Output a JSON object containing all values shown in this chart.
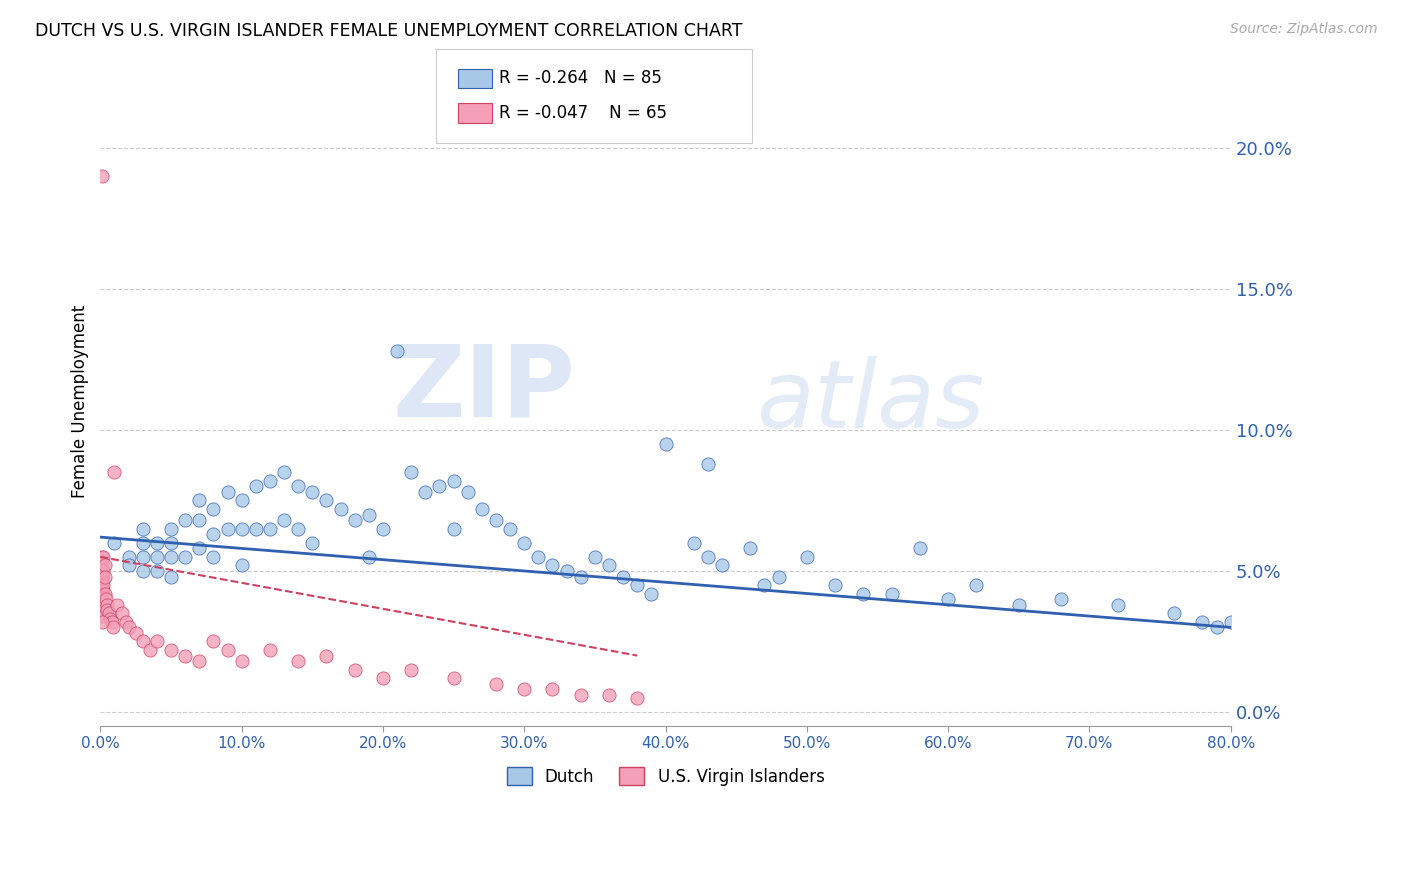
{
  "title": "DUTCH VS U.S. VIRGIN ISLANDER FEMALE UNEMPLOYMENT CORRELATION CHART",
  "source": "Source: ZipAtlas.com",
  "ylabel": "Female Unemployment",
  "xlim": [
    0.0,
    0.8
  ],
  "ylim": [
    -0.005,
    0.225
  ],
  "yticks": [
    0.0,
    0.05,
    0.1,
    0.15,
    0.2
  ],
  "ytick_labels": [
    "0.0%",
    "5.0%",
    "10.0%",
    "15.0%",
    "20.0%"
  ],
  "xticks": [
    0.0,
    0.1,
    0.2,
    0.3,
    0.4,
    0.5,
    0.6,
    0.7,
    0.8
  ],
  "xtick_labels": [
    "0.0%",
    "10.0%",
    "20.0%",
    "30.0%",
    "40.0%",
    "50.0%",
    "60.0%",
    "70.0%",
    "80.0%"
  ],
  "dutch_color": "#a8c8e8",
  "vi_color": "#f4a0b8",
  "dutch_line_color": "#3060b0",
  "vi_line_color": "#d04060",
  "R_dutch": -0.264,
  "N_dutch": 85,
  "R_vi": -0.047,
  "N_vi": 65,
  "legend_label_dutch": "Dutch",
  "legend_label_vi": "U.S. Virgin Islanders",
  "watermark_zip": "ZIP",
  "watermark_atlas": "atlas",
  "dutch_line_y_start": 0.062,
  "dutch_line_y_end": 0.03,
  "vi_line_x_start": 0.0,
  "vi_line_y_start": 0.055,
  "vi_line_x_end": 0.38,
  "vi_line_y_end": 0.02,
  "dutch_scatter_x": [
    0.01,
    0.02,
    0.02,
    0.03,
    0.03,
    0.03,
    0.03,
    0.04,
    0.04,
    0.04,
    0.05,
    0.05,
    0.05,
    0.05,
    0.06,
    0.06,
    0.07,
    0.07,
    0.07,
    0.08,
    0.08,
    0.08,
    0.09,
    0.09,
    0.1,
    0.1,
    0.1,
    0.11,
    0.11,
    0.12,
    0.12,
    0.13,
    0.13,
    0.14,
    0.14,
    0.15,
    0.15,
    0.16,
    0.17,
    0.18,
    0.19,
    0.19,
    0.2,
    0.21,
    0.22,
    0.23,
    0.24,
    0.25,
    0.25,
    0.26,
    0.27,
    0.28,
    0.29,
    0.3,
    0.31,
    0.32,
    0.33,
    0.34,
    0.35,
    0.36,
    0.37,
    0.38,
    0.39,
    0.4,
    0.42,
    0.43,
    0.44,
    0.46,
    0.48,
    0.5,
    0.52,
    0.54,
    0.56,
    0.58,
    0.6,
    0.62,
    0.65,
    0.68,
    0.72,
    0.76,
    0.78,
    0.79,
    0.8,
    0.43,
    0.47
  ],
  "dutch_scatter_y": [
    0.06,
    0.055,
    0.052,
    0.065,
    0.06,
    0.055,
    0.05,
    0.06,
    0.055,
    0.05,
    0.065,
    0.06,
    0.055,
    0.048,
    0.068,
    0.055,
    0.075,
    0.068,
    0.058,
    0.072,
    0.063,
    0.055,
    0.078,
    0.065,
    0.075,
    0.065,
    0.052,
    0.08,
    0.065,
    0.082,
    0.065,
    0.085,
    0.068,
    0.08,
    0.065,
    0.078,
    0.06,
    0.075,
    0.072,
    0.068,
    0.07,
    0.055,
    0.065,
    0.128,
    0.085,
    0.078,
    0.08,
    0.082,
    0.065,
    0.078,
    0.072,
    0.068,
    0.065,
    0.06,
    0.055,
    0.052,
    0.05,
    0.048,
    0.055,
    0.052,
    0.048,
    0.045,
    0.042,
    0.095,
    0.06,
    0.055,
    0.052,
    0.058,
    0.048,
    0.055,
    0.045,
    0.042,
    0.042,
    0.058,
    0.04,
    0.045,
    0.038,
    0.04,
    0.038,
    0.035,
    0.032,
    0.03,
    0.032,
    0.088,
    0.045
  ],
  "vi_scatter_x": [
    0.001,
    0.001,
    0.001,
    0.001,
    0.001,
    0.001,
    0.001,
    0.001,
    0.001,
    0.001,
    0.001,
    0.001,
    0.001,
    0.001,
    0.001,
    0.001,
    0.001,
    0.001,
    0.001,
    0.001,
    0.001,
    0.002,
    0.002,
    0.002,
    0.002,
    0.002,
    0.003,
    0.003,
    0.003,
    0.004,
    0.005,
    0.005,
    0.006,
    0.007,
    0.008,
    0.009,
    0.01,
    0.012,
    0.015,
    0.018,
    0.02,
    0.025,
    0.03,
    0.035,
    0.04,
    0.05,
    0.06,
    0.07,
    0.08,
    0.09,
    0.1,
    0.12,
    0.14,
    0.16,
    0.18,
    0.2,
    0.22,
    0.25,
    0.28,
    0.3,
    0.32,
    0.34,
    0.36,
    0.38,
    0.001
  ],
  "vi_scatter_y": [
    0.19,
    0.055,
    0.053,
    0.051,
    0.05,
    0.049,
    0.048,
    0.047,
    0.046,
    0.045,
    0.044,
    0.043,
    0.042,
    0.041,
    0.04,
    0.039,
    0.038,
    0.037,
    0.036,
    0.035,
    0.034,
    0.055,
    0.05,
    0.045,
    0.04,
    0.038,
    0.052,
    0.048,
    0.042,
    0.04,
    0.038,
    0.036,
    0.035,
    0.033,
    0.032,
    0.03,
    0.085,
    0.038,
    0.035,
    0.032,
    0.03,
    0.028,
    0.025,
    0.022,
    0.025,
    0.022,
    0.02,
    0.018,
    0.025,
    0.022,
    0.018,
    0.022,
    0.018,
    0.02,
    0.015,
    0.012,
    0.015,
    0.012,
    0.01,
    0.008,
    0.008,
    0.006,
    0.006,
    0.005,
    0.032
  ]
}
